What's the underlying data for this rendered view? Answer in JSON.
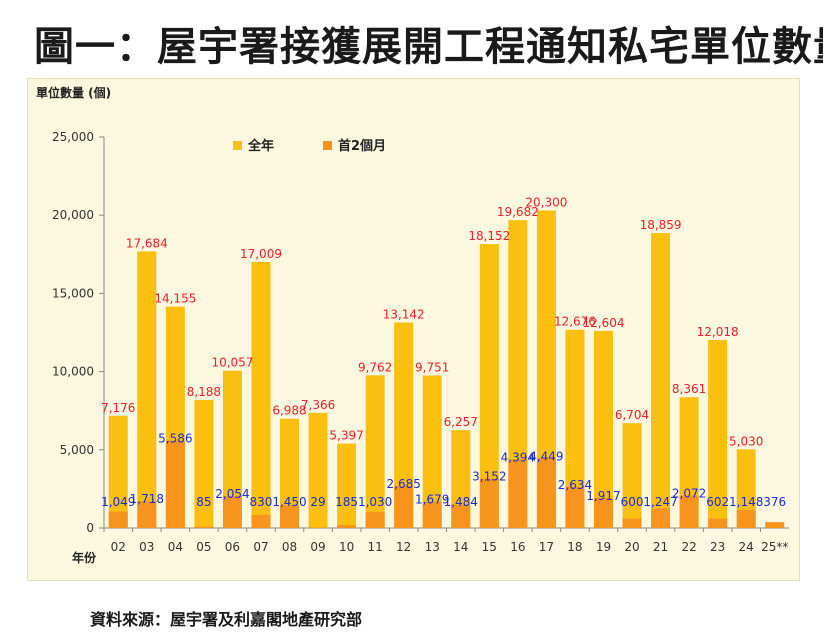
{
  "title": "圖一：屋宇署接獲展開工程通知私宅單位數量",
  "source": "資料來源：屋宇署及利嘉閣地產研究部",
  "colors": {
    "full_year": "#fbbf10",
    "first_two_months": "#f7941d",
    "full_label": "#e8202a",
    "first_label": "#1a2bd0"
  },
  "chart_data": {
    "type": "bar",
    "ylabel": "單位數量 (個)",
    "xlabel": "年份",
    "ylim": [
      0,
      25000
    ],
    "yticks": [
      "0",
      "5,000",
      "10,000",
      "15,000",
      "20,000",
      "25,000"
    ],
    "ytick_values": [
      0,
      5000,
      10000,
      15000,
      20000,
      25000
    ],
    "categories": [
      "02",
      "03",
      "04",
      "05",
      "06",
      "07",
      "08",
      "09",
      "10",
      "11",
      "12",
      "13",
      "14",
      "15",
      "16",
      "17",
      "18",
      "19",
      "20",
      "21",
      "22",
      "23",
      "24",
      "25**"
    ],
    "legend_placement": "top-center",
    "grid": false,
    "series": [
      {
        "name": "全年",
        "values": [
          7176,
          17684,
          14155,
          8188,
          10057,
          17009,
          6988,
          7366,
          5397,
          9762,
          13142,
          9751,
          6257,
          18152,
          19682,
          20300,
          12676,
          12604,
          6704,
          18859,
          8361,
          12018,
          5030,
          null
        ],
        "labels": [
          "7,176",
          "17,684",
          "14,155",
          "8,188",
          "10,057",
          "17,009",
          "6,988",
          "7,366",
          "5,397",
          "9,762",
          "13,142",
          "9,751",
          "6,257",
          "18,152",
          "19,682",
          "20,300",
          "12,676",
          "12,604",
          "6,704",
          "18,859",
          "8,361",
          "12,018",
          "5,030",
          ""
        ]
      },
      {
        "name": "首2個月",
        "values": [
          1049,
          1718,
          5586,
          85,
          2054,
          830,
          1450,
          29,
          185,
          1030,
          2685,
          1679,
          1484,
          3152,
          4394,
          4449,
          2634,
          1917,
          600,
          1247,
          2072,
          602,
          1148,
          376
        ],
        "labels": [
          "1,049",
          "1,718",
          "5,586",
          "85",
          "2,054",
          "830",
          "1,450",
          "29",
          "185",
          "1,030",
          "2,685",
          "1,679",
          "1,484",
          "3,152",
          "4,394",
          "4,449",
          "2,634",
          "1,917",
          "600",
          "1,247",
          "2,072",
          "602",
          "1,148",
          "376"
        ]
      }
    ]
  }
}
